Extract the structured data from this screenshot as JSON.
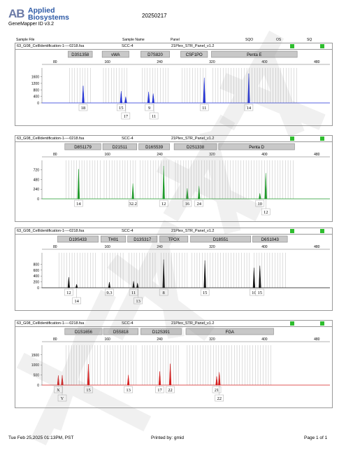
{
  "header": {
    "logo_text": "AB",
    "brand_line1": "Applied",
    "brand_line2": "Biosystems",
    "app_version": "GeneMapper ID v3.2",
    "run_date": "20250217"
  },
  "table_header": {
    "sample_file": "Sample File",
    "sample_name": "Sample Name",
    "panel": "Panel",
    "sqo": "SQO",
    "os": "OS",
    "sq": "SQ"
  },
  "panels": [
    {
      "sample_file": "63_G08_CellIdentification-1----0218.fsa",
      "sample_name": "SCC-4",
      "panel": "21Plex_STR_Panel_v1.2",
      "color": "#1f2fd6",
      "xticks": [
        80,
        160,
        240,
        320,
        400,
        480
      ],
      "yticks": [
        0,
        400,
        800,
        1200,
        1600
      ],
      "ymax": 1800,
      "markers": [
        {
          "name": "D3S1358",
          "start": 100,
          "end": 137
        },
        {
          "name": "vWA",
          "start": 152,
          "end": 193
        },
        {
          "name": "D7S820",
          "start": 211,
          "end": 255
        },
        {
          "name": "CSF1PO",
          "start": 272,
          "end": 313
        },
        {
          "name": "Penta E",
          "start": 319,
          "end": 450
        }
      ],
      "peaks": [
        {
          "x": 123,
          "h": 1050
        },
        {
          "x": 181,
          "h": 720
        },
        {
          "x": 188,
          "h": 380
        },
        {
          "x": 223,
          "h": 680
        },
        {
          "x": 230,
          "h": 570
        },
        {
          "x": 308,
          "h": 1540
        },
        {
          "x": 376,
          "h": 1800
        }
      ],
      "labels_row1": [
        {
          "x": 123,
          "text": "18"
        },
        {
          "x": 181,
          "text": "15"
        },
        {
          "x": 224,
          "text": "9"
        },
        {
          "x": 308,
          "text": "11"
        },
        {
          "x": 376,
          "text": "14"
        }
      ],
      "labels_row2": [
        {
          "x": 188,
          "text": "17"
        },
        {
          "x": 231,
          "text": "11"
        }
      ]
    },
    {
      "sample_file": "63_G08_CellIdentification-1----0218.fsa",
      "sample_name": "SCC-4",
      "panel": "21Plex_STR_Panel_v1.2",
      "color": "#1f9a2a",
      "xticks": [
        80,
        160,
        240,
        320,
        400,
        480
      ],
      "yticks": [
        0,
        240,
        480,
        720
      ],
      "ymax": 820,
      "markers": [
        {
          "name": "D8S1179",
          "start": 95,
          "end": 150
        },
        {
          "name": "D21S11",
          "start": 153,
          "end": 205
        },
        {
          "name": "D16S539",
          "start": 208,
          "end": 255
        },
        {
          "name": "D2S1338",
          "start": 262,
          "end": 327
        },
        {
          "name": "Penta D",
          "start": 330,
          "end": 446
        }
      ],
      "peaks": [
        {
          "x": 116,
          "h": 740
        },
        {
          "x": 199,
          "h": 380
        },
        {
          "x": 246,
          "h": 820
        },
        {
          "x": 282,
          "h": 260
        },
        {
          "x": 300,
          "h": 320
        },
        {
          "x": 393,
          "h": 140
        },
        {
          "x": 402,
          "h": 640
        }
      ],
      "labels_row1": [
        {
          "x": 116,
          "text": "14"
        },
        {
          "x": 199,
          "text": "32.2"
        },
        {
          "x": 246,
          "text": "12"
        },
        {
          "x": 282,
          "text": "16"
        },
        {
          "x": 300,
          "text": "24"
        },
        {
          "x": 393,
          "text": "10"
        }
      ],
      "labels_row2": [
        {
          "x": 402,
          "text": "12"
        }
      ]
    },
    {
      "sample_file": "63_G08_CellIdentification-1----0218.fsa",
      "sample_name": "SCC-4",
      "panel": "21Plex_STR_Panel_v1.2",
      "color": "#111111",
      "xticks": [
        80,
        160,
        240,
        320,
        400,
        480
      ],
      "yticks": [
        0,
        200,
        400,
        600,
        800
      ],
      "ymax": 1000,
      "markers": [
        {
          "name": "D19S433",
          "start": 84,
          "end": 146
        },
        {
          "name": "TH01",
          "start": 150,
          "end": 188
        },
        {
          "name": "D13S317",
          "start": 191,
          "end": 236
        },
        {
          "name": "TPOX",
          "start": 240,
          "end": 283
        },
        {
          "name": "D18S51",
          "start": 287,
          "end": 379
        },
        {
          "name": "D6S1043",
          "start": 382,
          "end": 435
        }
      ],
      "peaks": [
        {
          "x": 101,
          "h": 360
        },
        {
          "x": 113,
          "h": 120
        },
        {
          "x": 163,
          "h": 190
        },
        {
          "x": 200,
          "h": 220
        },
        {
          "x": 206,
          "h": 160
        },
        {
          "x": 246,
          "h": 960
        },
        {
          "x": 309,
          "h": 930
        },
        {
          "x": 384,
          "h": 680
        },
        {
          "x": 393,
          "h": 750
        }
      ],
      "labels_row1": [
        {
          "x": 101,
          "text": "12"
        },
        {
          "x": 163,
          "text": "9.3"
        },
        {
          "x": 200,
          "text": "11"
        },
        {
          "x": 246,
          "text": "8"
        },
        {
          "x": 309,
          "text": "15"
        },
        {
          "x": 384,
          "text": "10"
        },
        {
          "x": 393,
          "text": "15"
        }
      ],
      "labels_row2": [
        {
          "x": 113,
          "text": "14"
        },
        {
          "x": 207,
          "text": "13"
        }
      ]
    },
    {
      "sample_file": "63_G08_CellIdentification-1----0218.fsa",
      "sample_name": "SCC-4",
      "panel": "21Plex_STR_Panel_v1.2",
      "color": "#d41f1f",
      "xticks": [
        80,
        160,
        240,
        320,
        400,
        480
      ],
      "yticks": [
        0,
        500,
        1000,
        1500
      ],
      "ymax": 1700,
      "markers": [
        {
          "name": "D1S1656",
          "start": 95,
          "end": 152
        },
        {
          "name": "D5S818",
          "start": 154,
          "end": 207
        },
        {
          "name": "D12S391",
          "start": 211,
          "end": 273
        },
        {
          "name": "FGA",
          "start": 280,
          "end": 414
        }
      ],
      "peaks": [
        {
          "x": 85,
          "h": 480
        },
        {
          "x": 91,
          "h": 490
        },
        {
          "x": 131,
          "h": 1040
        },
        {
          "x": 192,
          "h": 500
        },
        {
          "x": 240,
          "h": 680
        },
        {
          "x": 256,
          "h": 1060
        },
        {
          "x": 327,
          "h": 430
        },
        {
          "x": 331,
          "h": 640
        }
      ],
      "labels_row1": [
        {
          "x": 85,
          "text": "X"
        },
        {
          "x": 131,
          "text": "15"
        },
        {
          "x": 192,
          "text": "13"
        },
        {
          "x": 240,
          "text": "17"
        },
        {
          "x": 256,
          "text": "22"
        },
        {
          "x": 327,
          "text": "21"
        }
      ],
      "labels_row2": [
        {
          "x": 91,
          "text": "Y"
        },
        {
          "x": 331,
          "text": "22"
        }
      ]
    }
  ],
  "footer": {
    "timestamp": "Tue Feb 25,2025 01:13PM, PST",
    "printed_by": "Printed by: gmid",
    "page": "Page 1 of 1"
  }
}
